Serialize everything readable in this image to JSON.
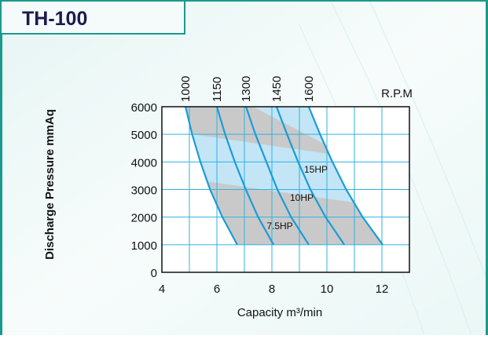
{
  "chart_data": {
    "type": "line",
    "title": "TH-100",
    "ylabel": "Discharge  Pressure  mmAq",
    "xlabel": "Capacity  m³/min",
    "rpm_label": "R.P.M",
    "hp_labels": [
      "15HP",
      "10HP",
      "7.5HP"
    ],
    "xlim": [
      4,
      13
    ],
    "ylim": [
      0,
      6000
    ],
    "xticks": [
      4,
      6,
      8,
      10,
      12
    ],
    "x_minor_ticks": [
      5,
      7,
      9,
      11,
      13
    ],
    "yticks": [
      0,
      1000,
      2000,
      3000,
      4000,
      5000,
      6000
    ],
    "grid": true,
    "grid_color": "#2fb2e4",
    "series": [
      {
        "name": "1000",
        "color": "#1b9cd8",
        "x": [
          4.86,
          5.1,
          5.4,
          5.75,
          6.2,
          6.74
        ],
        "values": [
          6000,
          5000,
          4000,
          3000,
          2000,
          1000
        ]
      },
      {
        "name": "1150",
        "color": "#1b9cd8",
        "x": [
          6.0,
          6.3,
          6.65,
          7.05,
          7.5,
          8.06
        ],
        "values": [
          6000,
          5000,
          4000,
          3000,
          2000,
          1000
        ]
      },
      {
        "name": "1300",
        "color": "#1b9cd8",
        "x": [
          7.06,
          7.4,
          7.8,
          8.2,
          8.7,
          9.34
        ],
        "values": [
          6000,
          5000,
          4000,
          3000,
          2000,
          1000
        ]
      },
      {
        "name": "1450",
        "color": "#1b9cd8",
        "x": [
          8.17,
          8.55,
          8.95,
          9.4,
          9.95,
          10.63
        ],
        "values": [
          6000,
          5000,
          4000,
          3000,
          2000,
          1000
        ]
      },
      {
        "name": "1600",
        "color": "#1b9cd8",
        "x": [
          9.34,
          9.75,
          10.2,
          10.7,
          11.3,
          12.03
        ],
        "values": [
          6000,
          5000,
          4000,
          3000,
          2000,
          1000
        ]
      }
    ]
  }
}
